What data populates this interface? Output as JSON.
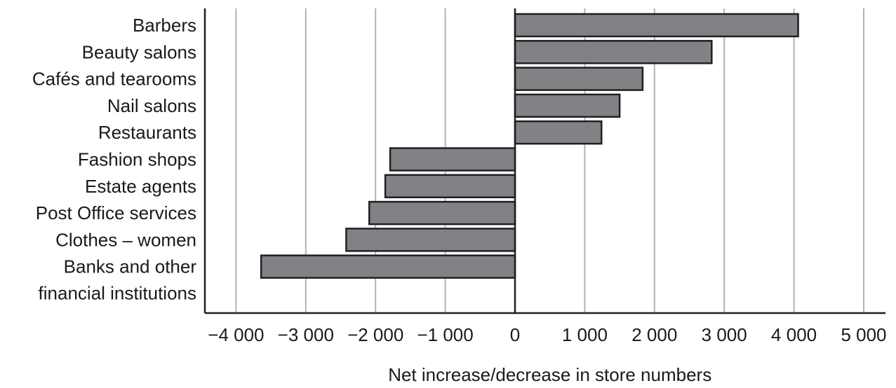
{
  "chart_data": {
    "type": "bar",
    "orientation": "horizontal",
    "title": "",
    "xlabel": "Net increase/decrease in store numbers",
    "ylabel": "",
    "xlim": [
      -4500,
      5000
    ],
    "xticks": [
      -4000,
      -3000,
      -2000,
      -1000,
      0,
      1000,
      2000,
      3000,
      4000,
      5000
    ],
    "xtick_labels": [
      "−4 000",
      "−3 000",
      "−2 000",
      "−1 000",
      "0",
      "1 000",
      "2 000",
      "3 000",
      "4 000",
      "5 000"
    ],
    "grid": "vertical",
    "categories": [
      "Barbers",
      "Beauty salons",
      "Cafés and tearooms",
      "Nail salons",
      "Restaurants",
      "Fashion shops",
      "Estate agents",
      "Post Office services",
      "Clothes – women",
      "Banks and other financial institutions"
    ],
    "category_lines": [
      [
        "Barbers"
      ],
      [
        "Beauty salons"
      ],
      [
        "Cafés and tearooms"
      ],
      [
        "Nail salons"
      ],
      [
        "Restaurants"
      ],
      [
        "Fashion shops"
      ],
      [
        "Estate agents"
      ],
      [
        "Post Office services"
      ],
      [
        "Clothes – women"
      ],
      [
        "Banks and other",
        "financial institutions"
      ]
    ],
    "values": [
      4060,
      2820,
      1830,
      1500,
      1240,
      -1790,
      -1860,
      -2090,
      -2420,
      -3640
    ],
    "bar_color": "#808285"
  }
}
